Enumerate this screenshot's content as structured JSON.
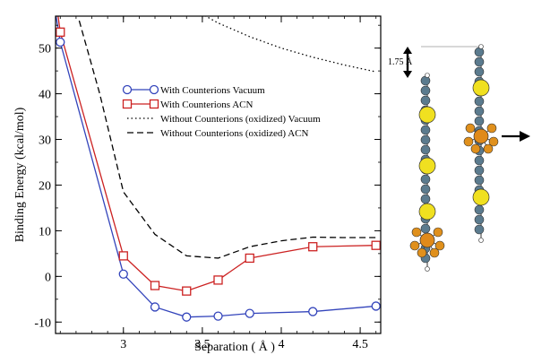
{
  "chart_data": {
    "type": "line",
    "xlabel": "Separation ( Å )",
    "ylabel": "Binding Energy (kcal/mol)",
    "xlim": [
      2.57,
      4.63
    ],
    "ylim": [
      -12.5,
      57
    ],
    "xticks": [
      3,
      3.5,
      4,
      4.5
    ],
    "yticks": [
      -10,
      0,
      10,
      20,
      30,
      40,
      50
    ],
    "legend_position": "upper-middle",
    "series": [
      {
        "name": "With Counterions Vacuum",
        "color": "#3344bb",
        "line_style": "solid",
        "marker": "circle",
        "x": [
          2.55,
          2.6,
          3.0,
          3.2,
          3.4,
          3.6,
          3.8,
          4.2,
          4.6
        ],
        "y": [
          62,
          51.3,
          0.5,
          -6.7,
          -8.9,
          -8.7,
          -8.1,
          -7.7,
          -6.5
        ]
      },
      {
        "name": "With Counterions ACN",
        "color": "#cc2222",
        "line_style": "solid",
        "marker": "square",
        "x": [
          2.55,
          2.6,
          3.0,
          3.2,
          3.4,
          3.6,
          3.8,
          4.2,
          4.6
        ],
        "y": [
          66,
          53.5,
          4.5,
          -2.0,
          -3.2,
          -0.8,
          4.0,
          6.5,
          6.8
        ]
      },
      {
        "name": "Without Counterions (oxidized) Vacuum",
        "color": "#000000",
        "line_style": "dotted",
        "marker": "none",
        "x": [
          3.4,
          3.5,
          3.6,
          3.8,
          4.0,
          4.2,
          4.4,
          4.6
        ],
        "y": [
          59,
          57.4,
          55.5,
          52.5,
          50.0,
          48.0,
          46.3,
          44.8
        ]
      },
      {
        "name": "Without Counterions (oxidized) ACN",
        "color": "#000000",
        "line_style": "dashed",
        "marker": "none",
        "x": [
          2.72,
          2.85,
          3.0,
          3.2,
          3.4,
          3.6,
          3.8,
          4.0,
          4.2,
          4.4,
          4.6
        ],
        "y": [
          56,
          40,
          18.5,
          9.2,
          4.5,
          4.0,
          6.5,
          7.8,
          8.6,
          8.5,
          8.5
        ]
      }
    ]
  },
  "figure_inset": {
    "distance_label": "1.75 Å"
  }
}
